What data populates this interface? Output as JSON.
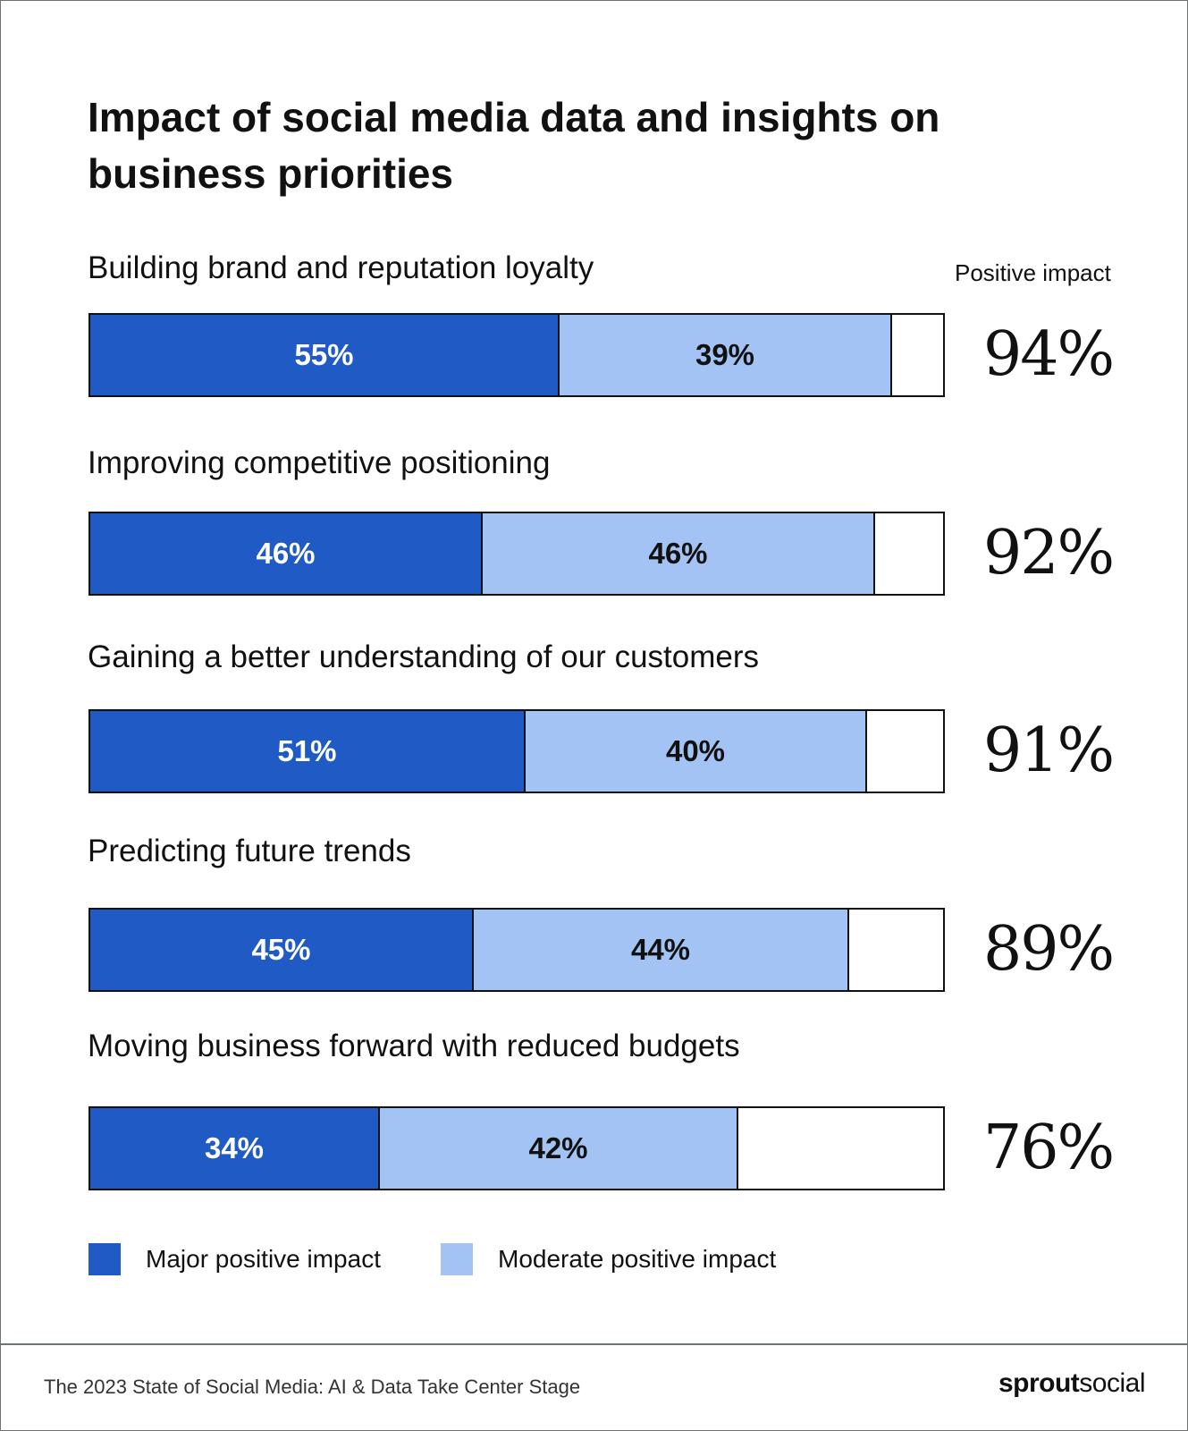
{
  "chart_data": {
    "type": "bar",
    "orientation": "horizontal-stacked",
    "title": "Impact of social media data and insights on business priorities",
    "categories": [
      "Building brand and reputation loyalty",
      "Improving competitive positioning",
      "Gaining a better understanding of our customers",
      "Predicting future trends",
      "Moving business forward with reduced budgets"
    ],
    "series": [
      {
        "name": "Major positive impact",
        "values": [
          55,
          46,
          51,
          45,
          34
        ],
        "labels": [
          "55%",
          "46%",
          "51%",
          "45%",
          "34%"
        ],
        "color": "#205bc5"
      },
      {
        "name": "Moderate positive impact",
        "values": [
          39,
          46,
          40,
          44,
          42
        ],
        "labels": [
          "39%",
          "46%",
          "40%",
          "44%",
          "42%"
        ],
        "color": "#a4c3f5"
      }
    ],
    "totals_header": "Positive impact",
    "totals": [
      "94%",
      "92%",
      "91%",
      "89%",
      "76%"
    ],
    "xlim": [
      0,
      100
    ],
    "grid": false,
    "legend": "bottom-left"
  },
  "footer": {
    "source": "The 2023 State of Social Media: AI & Data Take Center Stage",
    "logo_bold": "sprout",
    "logo_light": "social"
  }
}
